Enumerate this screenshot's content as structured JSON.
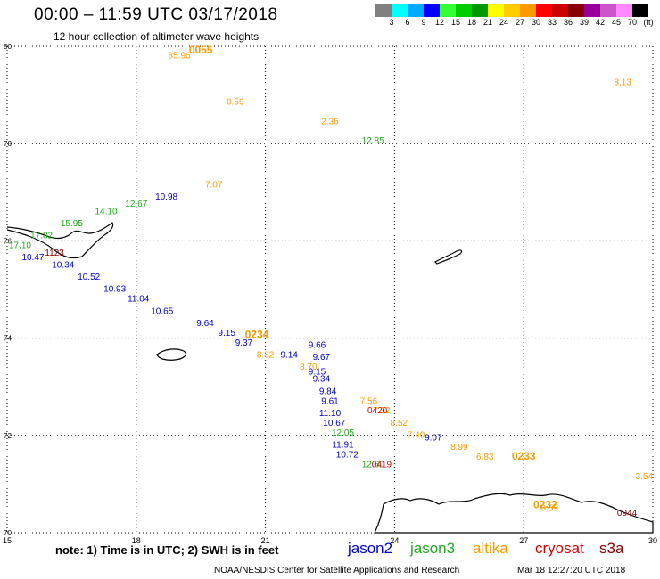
{
  "header": {
    "title": "00:00 – 11:59 UTC 03/17/2018",
    "subtitle": "12 hour collection of altimeter wave heights"
  },
  "legend": {
    "colors": [
      "#808080",
      "#00ffff",
      "#00aaff",
      "#0000ff",
      "#33ff33",
      "#00cc00",
      "#009900",
      "#ffff00",
      "#ffcc00",
      "#ff9900",
      "#ff0000",
      "#cc0000",
      "#880000",
      "#990099",
      "#cc55cc",
      "#ff88ff",
      "#000000"
    ],
    "labels": [
      "3",
      "6",
      "9",
      "12",
      "15",
      "18",
      "21",
      "24",
      "27",
      "30",
      "33",
      "36",
      "39",
      "42",
      "45",
      "70",
      "(ft)"
    ]
  },
  "axes": {
    "lon_ticks": [
      "15",
      "18",
      "21",
      "24",
      "27",
      "30"
    ],
    "lat_ticks": [
      "80",
      "78",
      "76",
      "74",
      "72",
      "70"
    ]
  },
  "chart_data": {
    "type": "scatter",
    "x_label": "",
    "y_label": "",
    "xlim": [
      15,
      30
    ],
    "ylim": [
      70,
      80
    ],
    "series": [
      {
        "name": "jason2",
        "color": "#0000cc",
        "points": [
          {
            "lon": 18.7,
            "lat": 76.85,
            "label": "10.98"
          },
          {
            "lon": 15.6,
            "lat": 75.6,
            "label": "10.47"
          },
          {
            "lon": 16.3,
            "lat": 75.45,
            "label": "10.34"
          },
          {
            "lon": 16.9,
            "lat": 75.2,
            "label": "10.52"
          },
          {
            "lon": 17.5,
            "lat": 74.95,
            "label": "10.93"
          },
          {
            "lon": 18.05,
            "lat": 74.75,
            "label": "11.04"
          },
          {
            "lon": 18.6,
            "lat": 74.5,
            "label": "10.65"
          },
          {
            "lon": 19.6,
            "lat": 74.25,
            "label": "9.64"
          },
          {
            "lon": 20.1,
            "lat": 74.05,
            "label": "9.15"
          },
          {
            "lon": 20.5,
            "lat": 73.85,
            "label": "9.37"
          },
          {
            "lon": 21.55,
            "lat": 73.6,
            "label": "9.14"
          },
          {
            "lon": 22.2,
            "lat": 73.8,
            "label": "9.66"
          },
          {
            "lon": 22.3,
            "lat": 73.55,
            "label": "9.67"
          },
          {
            "lon": 22.2,
            "lat": 73.25,
            "label": "9.15"
          },
          {
            "lon": 22.3,
            "lat": 73.1,
            "label": "9.34"
          },
          {
            "lon": 22.45,
            "lat": 72.85,
            "label": "9.84"
          },
          {
            "lon": 22.5,
            "lat": 72.65,
            "label": "9.61"
          },
          {
            "lon": 22.5,
            "lat": 72.4,
            "label": "11.10"
          },
          {
            "lon": 22.6,
            "lat": 72.2,
            "label": "10.67"
          },
          {
            "lon": 22.8,
            "lat": 71.75,
            "label": "11.91"
          },
          {
            "lon": 22.9,
            "lat": 71.55,
            "label": "10.72"
          },
          {
            "lon": 24.9,
            "lat": 71.9,
            "label": "9.07"
          }
        ]
      },
      {
        "name": "jason3",
        "color": "#22aa22",
        "points": [
          {
            "lon": 15.3,
            "lat": 75.85,
            "label": "17.10"
          },
          {
            "lon": 15.8,
            "lat": 76.05,
            "label": "17.82"
          },
          {
            "lon": 16.5,
            "lat": 76.3,
            "label": "15.95"
          },
          {
            "lon": 17.3,
            "lat": 76.55,
            "label": "14.10"
          },
          {
            "lon": 18.0,
            "lat": 76.7,
            "label": "12.67"
          },
          {
            "lon": 23.5,
            "lat": 78.0,
            "label": "12.85"
          },
          {
            "lon": 22.8,
            "lat": 72.0,
            "label": "12.05"
          },
          {
            "lon": 23.5,
            "lat": 71.35,
            "label": "12.60"
          }
        ]
      },
      {
        "name": "altika",
        "color": "#ff9900",
        "points": [
          {
            "lon": 19.0,
            "lat": 79.75,
            "label": "85.96"
          },
          {
            "lon": 20.3,
            "lat": 78.8,
            "label": "0.59"
          },
          {
            "lon": 19.8,
            "lat": 77.1,
            "label": "7.07"
          },
          {
            "lon": 29.3,
            "lat": 79.2,
            "label": "8.13"
          },
          {
            "lon": 22.5,
            "lat": 78.4,
            "label": "2.36"
          },
          {
            "lon": 21.0,
            "lat": 73.6,
            "label": "8.82"
          },
          {
            "lon": 22.0,
            "lat": 73.35,
            "label": "8.70"
          },
          {
            "lon": 23.4,
            "lat": 72.65,
            "label": "7.56"
          },
          {
            "lon": 23.7,
            "lat": 72.45,
            "label": "7.32"
          },
          {
            "lon": 24.1,
            "lat": 72.2,
            "label": "8.52"
          },
          {
            "lon": 24.5,
            "lat": 71.95,
            "label": "7.40"
          },
          {
            "lon": 25.5,
            "lat": 71.7,
            "label": "8.99"
          },
          {
            "lon": 26.1,
            "lat": 71.5,
            "label": "6.83"
          },
          {
            "lon": 29.8,
            "lat": 71.1,
            "label": "3.54"
          },
          {
            "lon": 27.6,
            "lat": 70.45,
            "label": "0.59"
          }
        ]
      },
      {
        "name": "cryosat",
        "color": "#dd0000",
        "points": [
          {
            "lon": 23.6,
            "lat": 72.45,
            "label": "0420"
          },
          {
            "lon": 23.7,
            "lat": 71.35,
            "label": "0419"
          }
        ]
      },
      {
        "name": "s3a",
        "color": "#880000",
        "points": [
          {
            "lon": 16.1,
            "lat": 75.7,
            "label": "1123"
          },
          {
            "lon": 29.4,
            "lat": 70.35,
            "label": "0944"
          }
        ]
      }
    ],
    "time_stamps": [
      {
        "lon": 19.5,
        "lat": 79.85,
        "label": "0055",
        "color": "#ff9900"
      },
      {
        "lon": 20.8,
        "lat": 74.0,
        "label": "0234",
        "color": "#ff9900"
      },
      {
        "lon": 27.0,
        "lat": 71.5,
        "label": "0233",
        "color": "#ff9900"
      },
      {
        "lon": 27.5,
        "lat": 70.5,
        "label": "0232",
        "color": "#ff9900"
      }
    ]
  },
  "note": {
    "text": "note: 1) Time is in UTC; 2) SWH is in feet"
  },
  "satellites": [
    {
      "name": "jason2",
      "color": "#0000cc"
    },
    {
      "name": "jason3",
      "color": "#22aa22"
    },
    {
      "name": "altika",
      "color": "#ff9900"
    },
    {
      "name": "cryosat",
      "color": "#dd0000"
    },
    {
      "name": "s3a",
      "color": "#880000"
    }
  ],
  "footer": {
    "credit": "NOAA/NESDIS Center for Satellite Applications and Research",
    "timestamp": "Mar 18 12:27:20 UTC 2018"
  }
}
